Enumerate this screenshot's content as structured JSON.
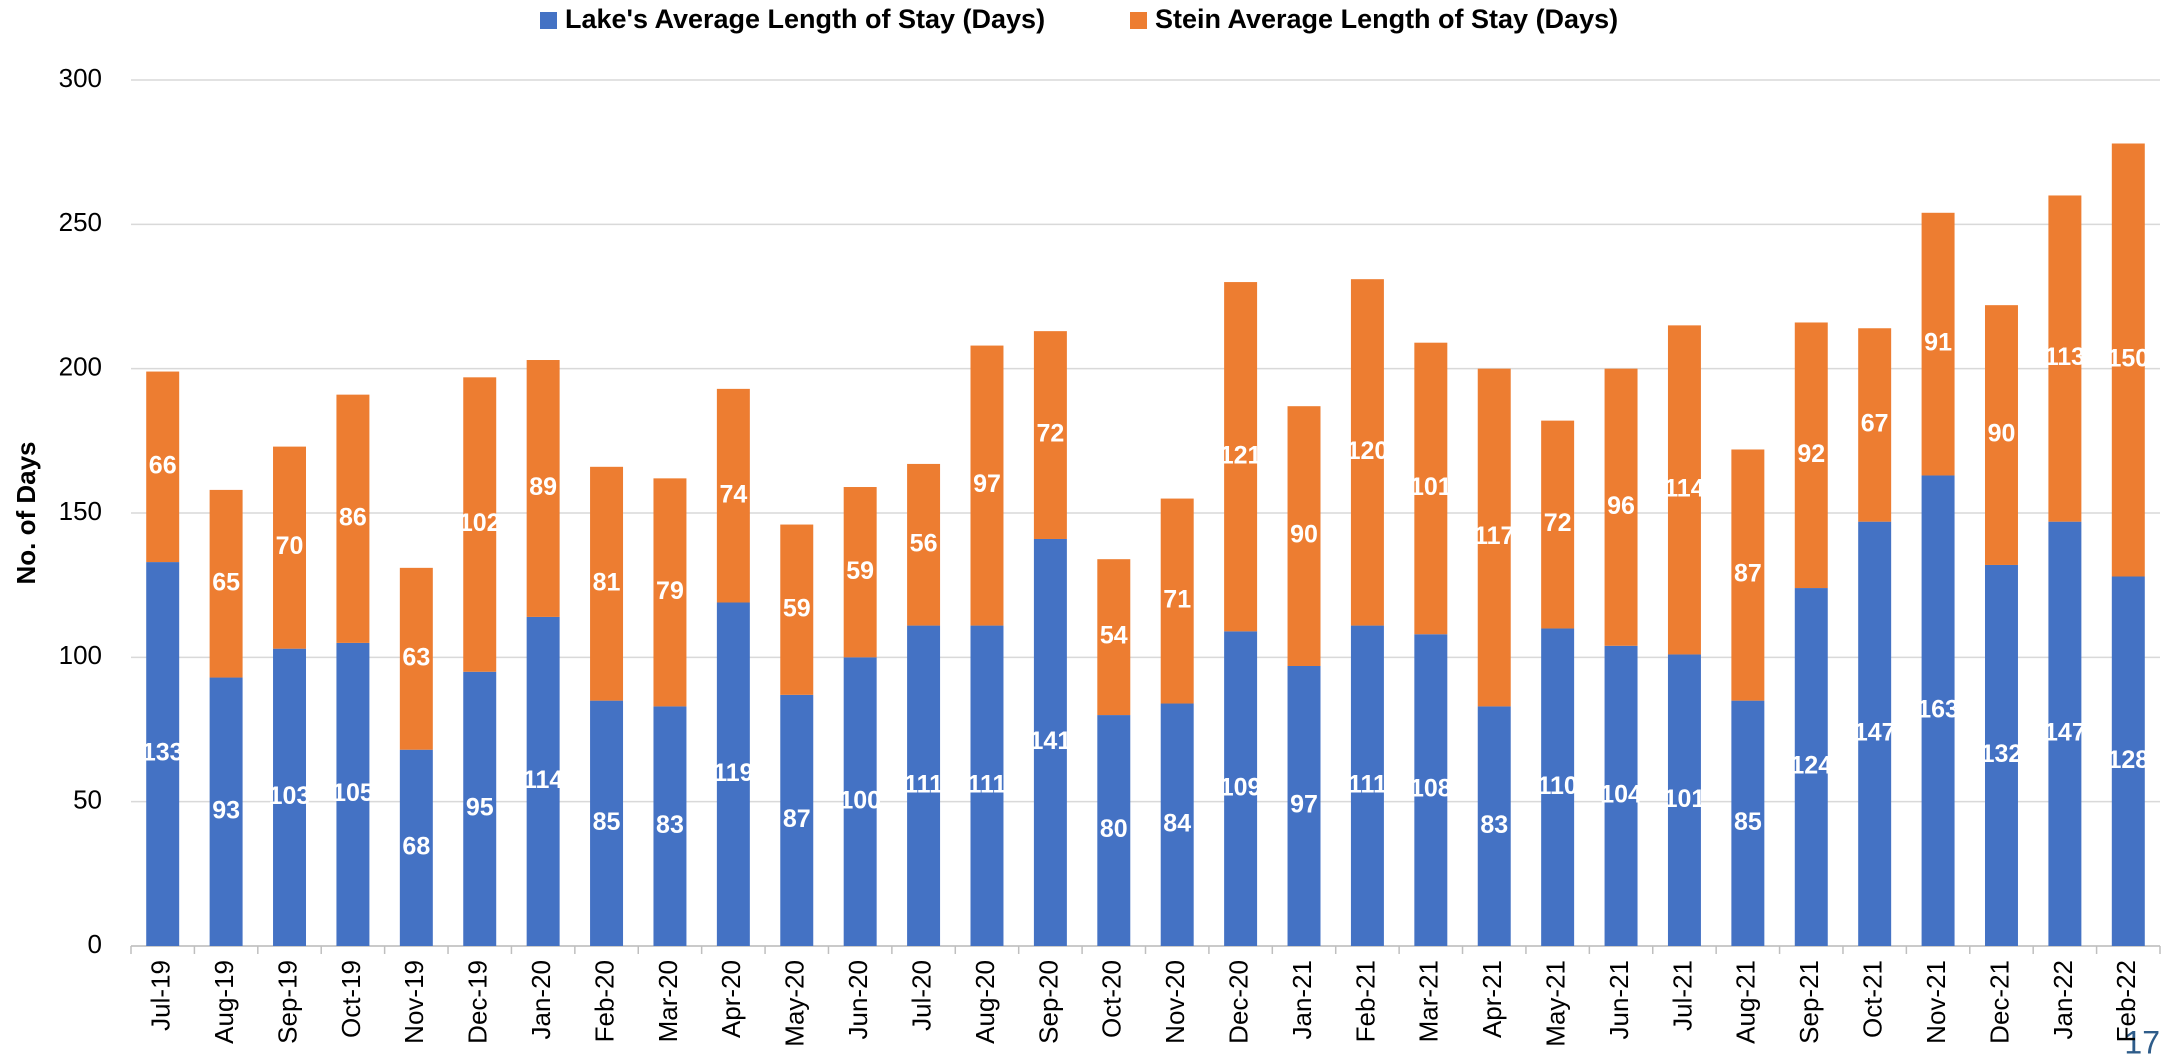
{
  "chart_data": {
    "type": "stacked_bar",
    "y_label": "No. of Days",
    "page_number": "17",
    "categories": [
      "Jul-19",
      "Aug-19",
      "Sep-19",
      "Oct-19",
      "Nov-19",
      "Dec-19",
      "Jan-20",
      "Feb-20",
      "Mar-20",
      "Apr-20",
      "May-20",
      "Jun-20",
      "Jul-20",
      "Aug-20",
      "Sep-20",
      "Oct-20",
      "Nov-20",
      "Dec-20",
      "Jan-21",
      "Feb-21",
      "Mar-21",
      "Apr-21",
      "May-21",
      "Jun-21",
      "Jul-21",
      "Aug-21",
      "Sep-21",
      "Oct-21",
      "Nov-21",
      "Dec-21",
      "Jan-22",
      "Feb-22"
    ],
    "series": [
      {
        "name": "Lake's Average Length of Stay (Days)",
        "color": "#4472c4",
        "values": [
          133,
          93,
          103,
          105,
          68,
          95,
          114,
          85,
          83,
          119,
          87,
          100,
          111,
          111,
          141,
          80,
          84,
          109,
          97,
          111,
          108,
          83,
          110,
          104,
          101,
          85,
          124,
          147,
          163,
          132,
          147,
          128
        ]
      },
      {
        "name": "Stein Average Length of Stay (Days)",
        "color": "#ed7d31",
        "values": [
          66,
          65,
          70,
          86,
          63,
          102,
          89,
          81,
          79,
          74,
          59,
          59,
          56,
          97,
          72,
          54,
          71,
          121,
          90,
          120,
          101,
          117,
          72,
          96,
          114,
          87,
          92,
          67,
          91,
          90,
          113,
          150
        ]
      }
    ],
    "ylim": [
      0,
      300
    ],
    "yticks": [
      0,
      50,
      100,
      150,
      200,
      250,
      300
    ],
    "grid": true,
    "legend": "top"
  }
}
